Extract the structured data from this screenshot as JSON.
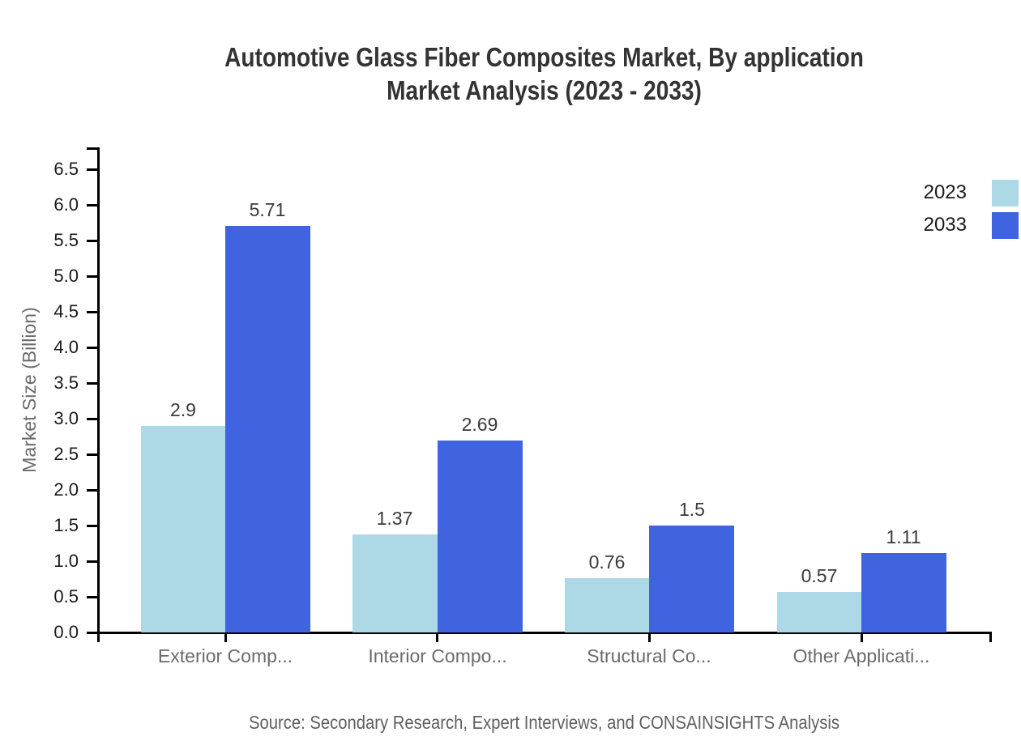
{
  "title": {
    "line1": "Automotive Glass Fiber Composites Market, By application",
    "line2": "Market Analysis (2023 - 2033)"
  },
  "source": "Source: Secondary Research, Expert Interviews, and CONSAINSIGHTS Analysis",
  "legend": {
    "position": "top-right",
    "entries": [
      {
        "label": "2023",
        "color": "#ADD8E6"
      },
      {
        "label": "2033",
        "color": "#4064E0"
      }
    ]
  },
  "chart_data": {
    "type": "bar",
    "title": "Automotive Glass Fiber Composites Market, By application Market Analysis (2023 - 2033)",
    "categories": [
      "Exterior Comp...",
      "Interior Compo...",
      "Structural Co...",
      "Other Applicati..."
    ],
    "series": [
      {
        "name": "2023",
        "color": "#ADD8E6",
        "values": [
          2.9,
          1.37,
          0.76,
          0.57
        ],
        "labels": [
          "2.9",
          "1.37",
          "0.76",
          "0.57"
        ]
      },
      {
        "name": "2033",
        "color": "#4064E0",
        "values": [
          5.71,
          2.69,
          1.5,
          1.11
        ],
        "labels": [
          "5.71",
          "2.69",
          "1.5",
          "1.11"
        ]
      }
    ],
    "xlabel": "",
    "ylabel": "Market Size (Billion)",
    "ylim": [
      0,
      6.8
    ],
    "ytick_step": 0.5,
    "ytick_max": 6.5,
    "grid": false,
    "legend_position": "top-right"
  },
  "colors": {
    "series_2023": "#ADD8E6",
    "series_2033": "#4064E0",
    "title_text": "#333333",
    "axis": "#000000",
    "tick_label": "#1a1a1a",
    "category_label": "#6b6b6b",
    "value_label": "#3a3a3a",
    "source_text": "#5f5f5f",
    "background": "#ffffff"
  }
}
